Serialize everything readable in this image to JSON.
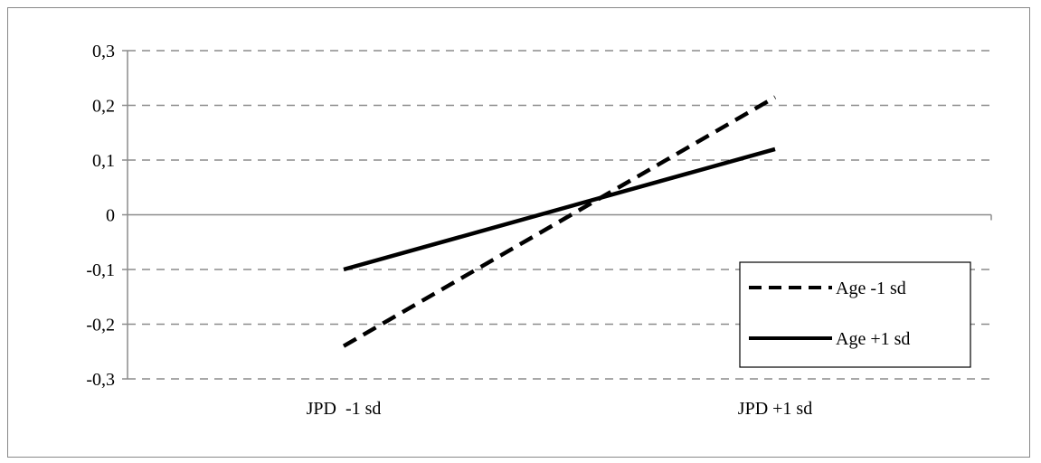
{
  "chart_data": {
    "type": "line",
    "categories": [
      "JPD  -1 sd",
      "JPD +1 sd"
    ],
    "series": [
      {
        "name": "Age -1 sd",
        "values": [
          -0.24,
          0.215
        ],
        "style": "dashed",
        "color": "#000000"
      },
      {
        "name": "Age +1 sd",
        "values": [
          -0.1,
          0.12
        ],
        "style": "solid",
        "color": "#000000"
      }
    ],
    "ylim": [
      -0.3,
      0.3
    ],
    "yticks": [
      0.3,
      0.2,
      0.1,
      0,
      -0.1,
      -0.2,
      -0.3
    ],
    "ytick_labels": [
      "0,3",
      "0,2",
      "0,1",
      "0",
      "-0,1",
      "-0,2",
      "-0,3"
    ],
    "grid": true,
    "grid_style": "dashed",
    "legend_position": "bottom-right",
    "title": "",
    "xlabel": "",
    "ylabel": ""
  }
}
